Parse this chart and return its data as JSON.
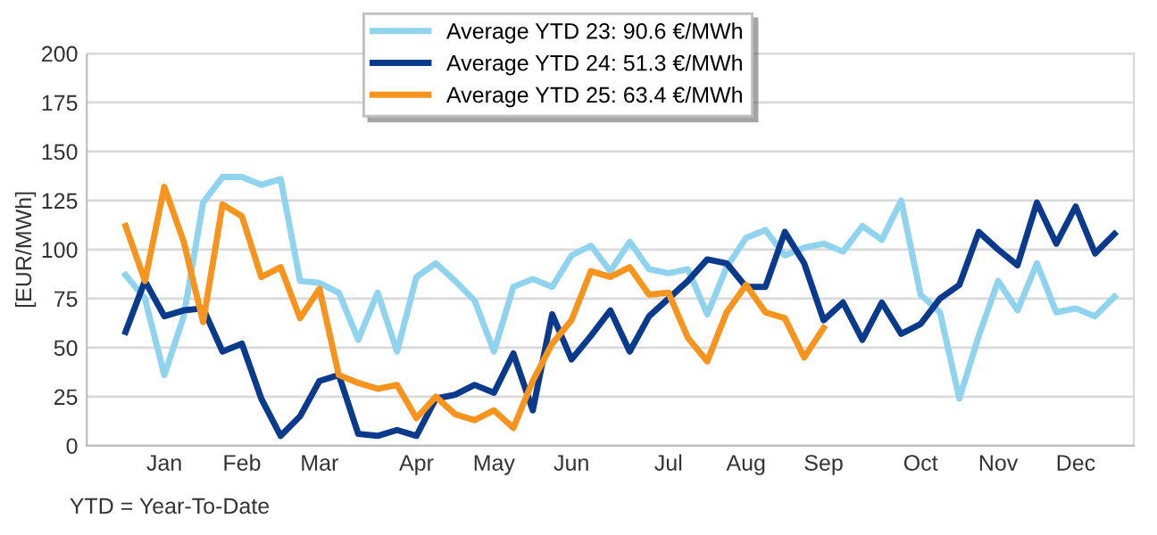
{
  "chart_data": {
    "type": "line",
    "ylabel": "[EUR/MWh]",
    "categories": [
      null,
      null,
      "Jan",
      null,
      null,
      null,
      "Feb",
      null,
      null,
      null,
      "Mar",
      null,
      null,
      null,
      null,
      "Apr",
      null,
      null,
      null,
      "May",
      null,
      null,
      null,
      "Jun",
      null,
      null,
      null,
      null,
      "Jul",
      null,
      null,
      null,
      "Aug",
      null,
      null,
      null,
      "Sep",
      null,
      null,
      null,
      null,
      "Oct",
      null,
      null,
      null,
      "Nov",
      null,
      null,
      null,
      "Dec",
      null,
      null
    ],
    "series": [
      {
        "name": "Average YTD 23: 90.6 €/MWh",
        "color": "#8fd3ee",
        "values": [
          87,
          75,
          36,
          66,
          124,
          137,
          137,
          133,
          136,
          84,
          83,
          78,
          54,
          78,
          48,
          86,
          93,
          84,
          74,
          48,
          81,
          85,
          81,
          97,
          102,
          89,
          104,
          90,
          88,
          90,
          67,
          91,
          106,
          110,
          97,
          101,
          103,
          99,
          112,
          105,
          125,
          77,
          68,
          24,
          56,
          84,
          69,
          93,
          68,
          70,
          66,
          76
        ]
      },
      {
        "name": "Average YTD 24: 51.3 €/MWh",
        "color": "#0a3a8c",
        "values": [
          58,
          84,
          66,
          69,
          70,
          48,
          52,
          24,
          5,
          15,
          33,
          36,
          6,
          5,
          8,
          5,
          24,
          26,
          31,
          27,
          47,
          18,
          67,
          44,
          56,
          69,
          48,
          66,
          75,
          84,
          95,
          93,
          81,
          81,
          109,
          93,
          64,
          73,
          54,
          73,
          57,
          62,
          75,
          82,
          109,
          100,
          92,
          124,
          103,
          122,
          98,
          108
        ]
      },
      {
        "name": "Average YTD 25: 63.4 €/MWh",
        "color": "#f7941d",
        "values": [
          112,
          84,
          132,
          104,
          63,
          123,
          117,
          86,
          91,
          65,
          80,
          36,
          32,
          29,
          31,
          14,
          25,
          16,
          13,
          18,
          9,
          33,
          52,
          64,
          89,
          86,
          91,
          77,
          78,
          55,
          43,
          68,
          82,
          68,
          65,
          45,
          60,
          null,
          null,
          null,
          null,
          null,
          null,
          null,
          null,
          null,
          null,
          null,
          null,
          null,
          null,
          null
        ]
      }
    ],
    "ylim": [
      0,
      200
    ],
    "yticks": [
      0,
      25,
      50,
      75,
      100,
      125,
      150,
      175,
      200
    ],
    "grid": "y",
    "legend": "top",
    "marker": "none",
    "line_style": "solid",
    "annotations": [
      "YTD = Year-To-Date"
    ]
  }
}
